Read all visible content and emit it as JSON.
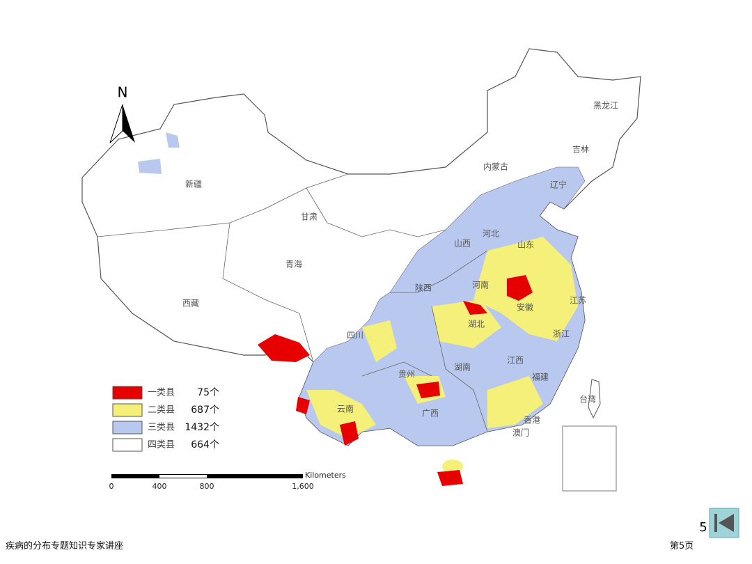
{
  "map": {
    "north": "N",
    "provinces": [
      "黑龙江",
      "吉林",
      "内蒙古",
      "辽宁",
      "新疆",
      "甘肃",
      "河北",
      "山西",
      "山东",
      "青海",
      "河南",
      "陕西",
      "西藏",
      "安徽",
      "湖北",
      "四川",
      "江苏",
      "浙江",
      "湖南",
      "江西",
      "贵州",
      "福建",
      "云南",
      "广西",
      "台湾",
      "香港",
      "澳门"
    ],
    "legend": [
      {
        "label": "一类县",
        "count": "75个"
      },
      {
        "label": "二类县",
        "count": "687个"
      },
      {
        "label": "三类县",
        "count": "1432个"
      },
      {
        "label": "四类县",
        "count": "664个"
      }
    ],
    "scale": {
      "unit": "Kilometers",
      "ticks": [
        "0",
        "400",
        "800",
        "1,600"
      ]
    }
  },
  "slide_number": "5",
  "footer": {
    "left": "疾病的分布专题知识专家讲座",
    "right": "第5页"
  }
}
